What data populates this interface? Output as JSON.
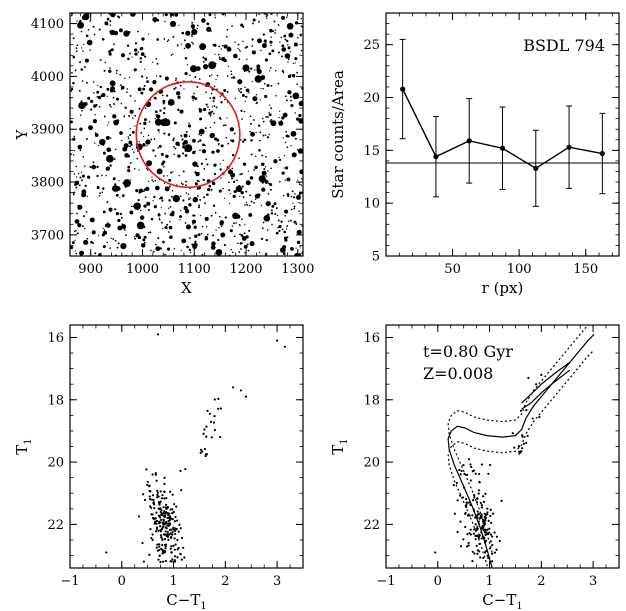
{
  "chart_data": [
    {
      "panel": "top-left",
      "type": "scatter",
      "title": "",
      "xlabel": "X",
      "ylabel": "Y",
      "xlim": [
        860,
        1310
      ],
      "ylim": [
        3660,
        4120
      ],
      "xticks": [
        900,
        1000,
        1100,
        1200,
        1300
      ],
      "yticks": [
        3700,
        3800,
        3900,
        4000,
        4100
      ],
      "circle": {
        "center_x": 1088,
        "center_y": 3890,
        "radius": 100,
        "color": "#e02020"
      },
      "stars": {
        "count": 1200,
        "seed": 7
      }
    },
    {
      "panel": "top-right",
      "type": "line",
      "title": "BSDL 794",
      "xlabel": "r (px)",
      "ylabel": "Star counts/Area",
      "xlim": [
        0,
        175
      ],
      "ylim": [
        5,
        28
      ],
      "xticks": [
        50,
        100,
        150
      ],
      "yticks": [
        5,
        10,
        15,
        20,
        25
      ],
      "background_level": 13.8,
      "x": [
        12.5,
        37.5,
        62.5,
        87.5,
        112.5,
        137.5,
        162.5
      ],
      "y": [
        20.8,
        14.4,
        15.9,
        15.2,
        13.3,
        15.3,
        14.7
      ],
      "err": [
        4.7,
        3.8,
        4.0,
        3.9,
        3.6,
        3.9,
        3.8
      ]
    },
    {
      "panel": "bottom-left",
      "type": "scatter",
      "title": "",
      "xlabel": "C−T",
      "xlabel_sub": "1",
      "ylabel": "T",
      "ylabel_sub": "1",
      "xlim": [
        -1,
        3.5
      ],
      "ylim": [
        23.4,
        15.6
      ],
      "xticks": [
        -1,
        0,
        1,
        2,
        3
      ],
      "yticks": [
        16,
        18,
        20,
        22
      ],
      "seed": 11
    },
    {
      "panel": "bottom-right",
      "type": "scatter",
      "title": "",
      "xlabel": "C−T",
      "xlabel_sub": "1",
      "ylabel": "T",
      "ylabel_sub": "1",
      "xlim": [
        -1,
        3.5
      ],
      "ylim": [
        23.4,
        15.6
      ],
      "xticks": [
        -1,
        0,
        1,
        2,
        3
      ],
      "yticks": [
        16,
        18,
        20,
        22
      ],
      "annotations": [
        "t=0.80 Gyr",
        "Z=0.008"
      ],
      "seed": 23,
      "isochrone": [
        [
          1.05,
          23.4
        ],
        [
          0.95,
          22.8
        ],
        [
          0.82,
          22.1
        ],
        [
          0.66,
          21.4
        ],
        [
          0.48,
          20.7
        ],
        [
          0.32,
          20.1
        ],
        [
          0.22,
          19.6
        ],
        [
          0.2,
          19.25
        ],
        [
          0.26,
          19.0
        ],
        [
          0.38,
          18.85
        ],
        [
          0.52,
          18.9
        ],
        [
          0.7,
          19.05
        ],
        [
          0.95,
          19.15
        ],
        [
          1.25,
          19.2
        ],
        [
          1.5,
          19.15
        ],
        [
          1.62,
          18.95
        ],
        [
          1.7,
          18.6
        ],
        [
          1.85,
          18.2
        ],
        [
          2.1,
          17.7
        ],
        [
          2.4,
          17.1
        ],
        [
          2.7,
          16.5
        ],
        [
          2.9,
          16.1
        ],
        [
          3.02,
          15.9
        ]
      ],
      "isochrone_offset": 0.5,
      "isochrone_bright": [
        [
          1.62,
          18.1
        ],
        [
          1.75,
          17.9
        ],
        [
          2.0,
          17.5
        ],
        [
          2.3,
          17.1
        ],
        [
          2.55,
          16.8
        ]
      ],
      "isochrone_bright2": [
        [
          1.62,
          18.3
        ],
        [
          1.8,
          18.1
        ],
        [
          2.05,
          17.7
        ],
        [
          2.35,
          17.3
        ],
        [
          2.55,
          17.05
        ]
      ]
    }
  ]
}
